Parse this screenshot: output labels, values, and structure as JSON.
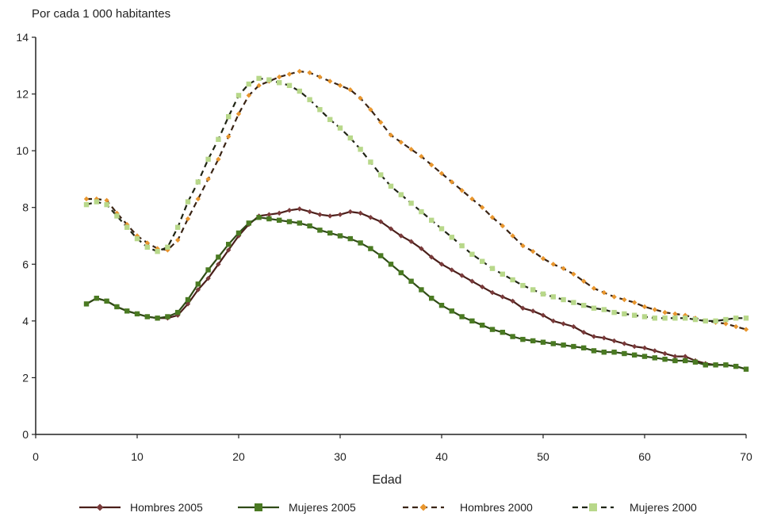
{
  "chart_data": {
    "type": "line",
    "ylabel": "Por cada 1 000 habitantes",
    "xlabel": "Edad",
    "xlim": [
      0,
      70
    ],
    "ylim": [
      0,
      14
    ],
    "xticks": [
      0,
      10,
      20,
      30,
      40,
      50,
      60,
      70
    ],
    "yticks": [
      0,
      2,
      4,
      6,
      8,
      10,
      12,
      14
    ],
    "grid": false,
    "legend_position": "bottom",
    "x": [
      5,
      6,
      7,
      8,
      9,
      10,
      11,
      12,
      13,
      14,
      15,
      16,
      17,
      18,
      19,
      20,
      21,
      22,
      23,
      24,
      25,
      26,
      27,
      28,
      29,
      30,
      31,
      32,
      33,
      34,
      35,
      36,
      37,
      38,
      39,
      40,
      41,
      42,
      43,
      44,
      45,
      46,
      47,
      48,
      49,
      50,
      51,
      52,
      53,
      54,
      55,
      56,
      57,
      58,
      59,
      60,
      61,
      62,
      63,
      64,
      65,
      66,
      67,
      68,
      69,
      70
    ],
    "series": [
      {
        "name": "Hombres 2005",
        "color": "#4a1f1a",
        "marker": "diamond",
        "marker_color": "#7a3a3a",
        "dash": "solid",
        "values": [
          4.6,
          4.8,
          4.7,
          4.5,
          4.35,
          4.25,
          4.15,
          4.1,
          4.1,
          4.2,
          4.6,
          5.1,
          5.5,
          6.0,
          6.5,
          7.0,
          7.4,
          7.7,
          7.75,
          7.8,
          7.9,
          7.95,
          7.85,
          7.75,
          7.7,
          7.75,
          7.85,
          7.8,
          7.65,
          7.5,
          7.25,
          7.0,
          6.8,
          6.55,
          6.25,
          6.0,
          5.8,
          5.6,
          5.4,
          5.2,
          5.0,
          4.85,
          4.7,
          4.45,
          4.35,
          4.2,
          4.0,
          3.9,
          3.8,
          3.6,
          3.45,
          3.4,
          3.3,
          3.2,
          3.1,
          3.05,
          2.95,
          2.85,
          2.75,
          2.75,
          2.6,
          2.5,
          2.45,
          2.45,
          2.4,
          2.3
        ]
      },
      {
        "name": "Mujeres 2005",
        "color": "#2f4a17",
        "marker": "square",
        "marker_color": "#4a7a22",
        "dash": "solid",
        "values": [
          4.6,
          4.8,
          4.7,
          4.5,
          4.35,
          4.25,
          4.15,
          4.1,
          4.15,
          4.3,
          4.75,
          5.3,
          5.8,
          6.25,
          6.7,
          7.1,
          7.45,
          7.65,
          7.6,
          7.55,
          7.5,
          7.45,
          7.35,
          7.2,
          7.1,
          7.0,
          6.9,
          6.75,
          6.55,
          6.3,
          6.0,
          5.7,
          5.4,
          5.1,
          4.8,
          4.55,
          4.35,
          4.15,
          4.0,
          3.85,
          3.7,
          3.6,
          3.45,
          3.35,
          3.3,
          3.25,
          3.2,
          3.15,
          3.1,
          3.05,
          2.95,
          2.9,
          2.9,
          2.85,
          2.8,
          2.75,
          2.7,
          2.65,
          2.6,
          2.6,
          2.55,
          2.45,
          2.45,
          2.45,
          2.4,
          2.3
        ]
      },
      {
        "name": "Hombres 2000",
        "color": "#3a2414",
        "marker": "diamond",
        "marker_color": "#e8962e",
        "dash": "dashed",
        "values": [
          8.3,
          8.3,
          8.25,
          7.8,
          7.4,
          7.0,
          6.75,
          6.55,
          6.5,
          6.85,
          7.6,
          8.3,
          9.0,
          9.7,
          10.5,
          11.3,
          11.95,
          12.3,
          12.45,
          12.6,
          12.7,
          12.8,
          12.75,
          12.6,
          12.45,
          12.3,
          12.15,
          11.85,
          11.45,
          11.0,
          10.55,
          10.3,
          10.05,
          9.8,
          9.5,
          9.2,
          8.9,
          8.6,
          8.3,
          8.0,
          7.65,
          7.35,
          7.0,
          6.65,
          6.45,
          6.2,
          6.0,
          5.85,
          5.65,
          5.4,
          5.15,
          5.0,
          4.85,
          4.75,
          4.65,
          4.5,
          4.4,
          4.3,
          4.25,
          4.2,
          4.1,
          4.0,
          3.95,
          3.9,
          3.8,
          3.7
        ]
      },
      {
        "name": "Mujeres 2000",
        "color": "#1f2414",
        "marker": "square",
        "marker_color": "#b8d88a",
        "dash": "dashed",
        "values": [
          8.1,
          8.2,
          8.1,
          7.7,
          7.3,
          6.9,
          6.6,
          6.45,
          6.6,
          7.3,
          8.2,
          8.9,
          9.7,
          10.4,
          11.2,
          11.95,
          12.35,
          12.55,
          12.5,
          12.4,
          12.3,
          12.1,
          11.8,
          11.45,
          11.1,
          10.8,
          10.45,
          10.05,
          9.6,
          9.15,
          8.75,
          8.45,
          8.15,
          7.85,
          7.55,
          7.25,
          6.95,
          6.65,
          6.35,
          6.1,
          5.85,
          5.65,
          5.45,
          5.25,
          5.1,
          4.95,
          4.85,
          4.75,
          4.65,
          4.55,
          4.45,
          4.4,
          4.3,
          4.25,
          4.2,
          4.15,
          4.1,
          4.1,
          4.1,
          4.1,
          4.05,
          4.0,
          4.0,
          4.05,
          4.1,
          4.1
        ]
      }
    ]
  }
}
